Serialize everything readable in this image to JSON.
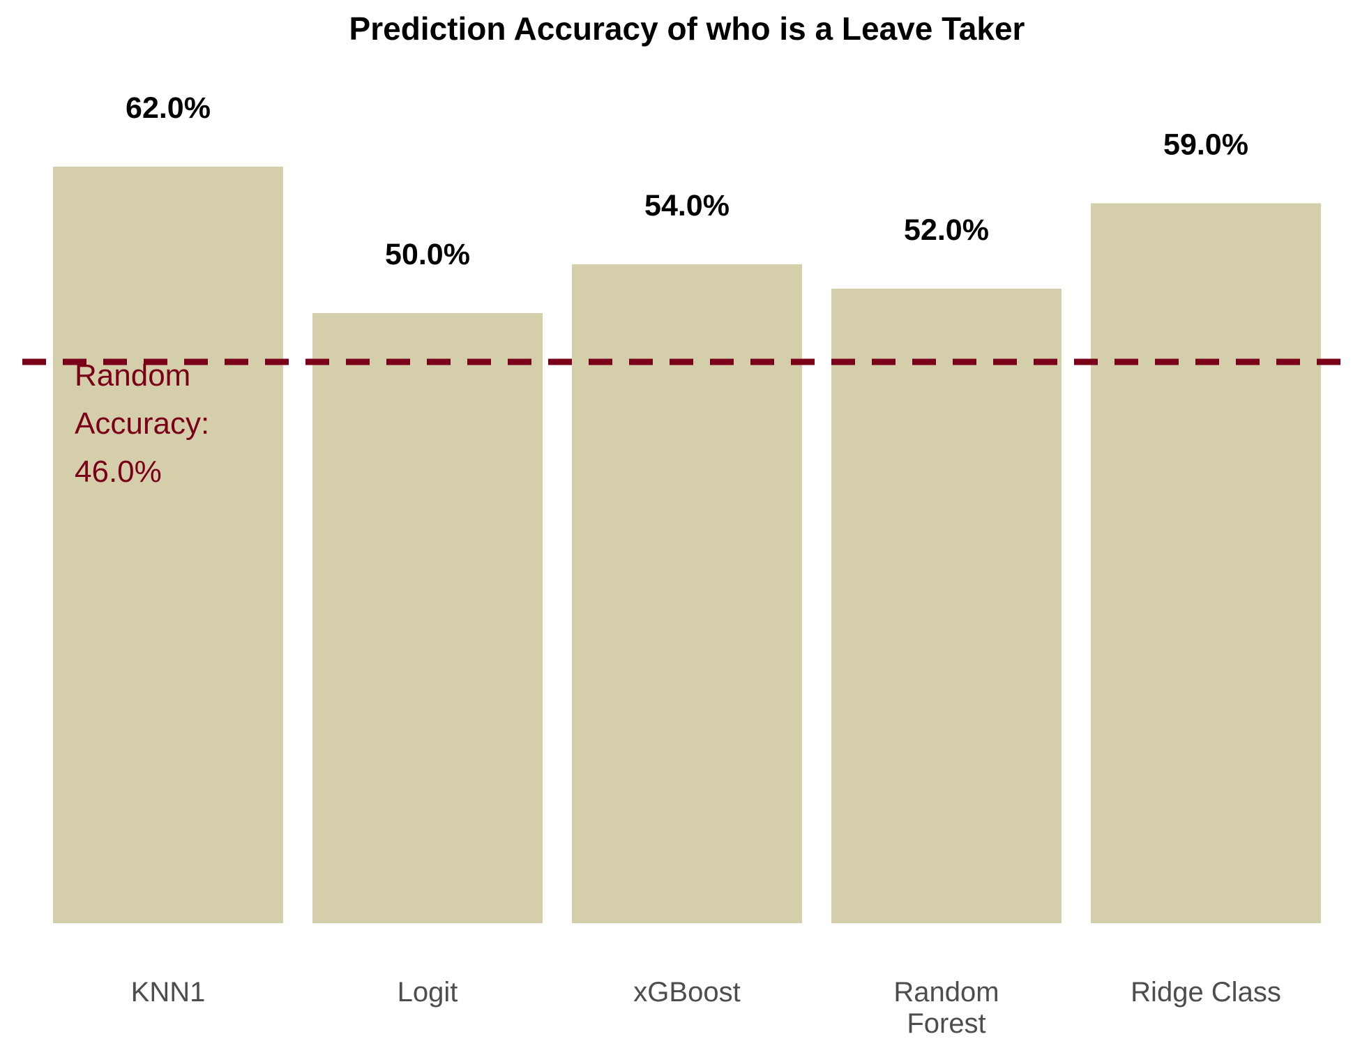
{
  "chart_data": {
    "type": "bar",
    "title": "Prediction Accuracy of who is a Leave Taker",
    "xlabel": "",
    "ylabel": "",
    "categories": [
      "KNN1",
      "Logit",
      "xGBoost",
      "Random Forest",
      "Ridge Class"
    ],
    "category_lines": [
      [
        "KNN1"
      ],
      [
        "Logit"
      ],
      [
        "xGBoost"
      ],
      [
        "Random",
        "Forest"
      ],
      [
        "Ridge Class"
      ]
    ],
    "values": [
      0.62,
      0.5,
      0.54,
      0.52,
      0.59
    ],
    "value_labels": [
      "62.0%",
      "50.0%",
      "54.0%",
      "52.0%",
      "59.0%"
    ],
    "ylim": [
      0,
      0.66
    ],
    "grid": false,
    "legend": "none",
    "reference_line": {
      "value": 0.46,
      "style": "dashed",
      "label_lines": [
        "Random",
        "Accuracy:",
        "46.0%"
      ]
    },
    "colors": {
      "bar": "#D5CEAA",
      "reference": "#7A0019",
      "title": "#000000",
      "value_label": "#000000",
      "category_label": "#4D4D4D"
    }
  }
}
